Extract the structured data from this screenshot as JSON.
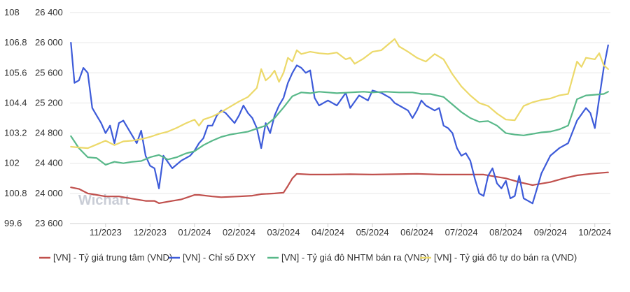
{
  "chart_data": {
    "type": "line",
    "title": "",
    "watermark": "Wichart",
    "x_labels": [
      "11/2023",
      "12/2023",
      "01/2024",
      "02/2024",
      "03/2024",
      "04/2024",
      "05/2024",
      "06/2024",
      "07/2024",
      "08/2024",
      "09/2024",
      "10/2024"
    ],
    "x_range_months": [
      -0.8,
      11.35
    ],
    "left_axis": {
      "ticks": [
        "108",
        "106.8",
        "105.6",
        "104.4",
        "103.2",
        "102",
        "100.8",
        "99.6"
      ],
      "range": [
        99.6,
        108
      ]
    },
    "right_axis": {
      "ticks": [
        "26 400",
        "26 000",
        "25 600",
        "25 200",
        "24 800",
        "24 400",
        "24 000",
        "23 600"
      ],
      "range": [
        23600,
        26400
      ]
    },
    "series": [
      {
        "name": "[VN] - Tỷ giá trung tâm (VND)",
        "color": "#c0504d",
        "axis": "right",
        "points": [
          [
            -0.78,
            24080
          ],
          [
            -0.6,
            24060
          ],
          [
            -0.4,
            24000
          ],
          [
            -0.2,
            23980
          ],
          [
            0,
            23960
          ],
          [
            0.3,
            23960
          ],
          [
            0.6,
            23930
          ],
          [
            0.9,
            23900
          ],
          [
            1.1,
            23900
          ],
          [
            1.2,
            23870
          ],
          [
            1.5,
            23900
          ],
          [
            1.7,
            23920
          ],
          [
            1.9,
            23960
          ],
          [
            2.0,
            23980
          ],
          [
            2.1,
            23980
          ],
          [
            2.4,
            23960
          ],
          [
            2.6,
            23950
          ],
          [
            3.0,
            23960
          ],
          [
            3.3,
            23970
          ],
          [
            3.5,
            23990
          ],
          [
            3.8,
            24000
          ],
          [
            4.0,
            24010
          ],
          [
            4.1,
            24100
          ],
          [
            4.2,
            24200
          ],
          [
            4.3,
            24260
          ],
          [
            4.6,
            24250
          ],
          [
            5.0,
            24250
          ],
          [
            5.5,
            24255
          ],
          [
            6.0,
            24250
          ],
          [
            6.5,
            24255
          ],
          [
            7.0,
            24260
          ],
          [
            7.5,
            24250
          ],
          [
            8.0,
            24250
          ],
          [
            8.5,
            24250
          ],
          [
            9.0,
            24200
          ],
          [
            9.3,
            24150
          ],
          [
            9.6,
            24110
          ],
          [
            9.8,
            24130
          ],
          [
            10.0,
            24150
          ],
          [
            10.3,
            24200
          ],
          [
            10.6,
            24240
          ],
          [
            10.9,
            24260
          ],
          [
            11.1,
            24270
          ],
          [
            11.3,
            24280
          ]
        ]
      },
      {
        "name": "[VN] - Chỉ số DXY",
        "color": "#3d5bd9",
        "axis": "left",
        "points": [
          [
            -0.78,
            106.8
          ],
          [
            -0.7,
            105.2
          ],
          [
            -0.6,
            105.3
          ],
          [
            -0.5,
            105.8
          ],
          [
            -0.4,
            105.6
          ],
          [
            -0.3,
            104.2
          ],
          [
            -0.2,
            103.9
          ],
          [
            -0.1,
            103.6
          ],
          [
            0,
            103.2
          ],
          [
            0.1,
            103.5
          ],
          [
            0.2,
            102.8
          ],
          [
            0.3,
            103.6
          ],
          [
            0.4,
            103.7
          ],
          [
            0.5,
            103.4
          ],
          [
            0.6,
            103.1
          ],
          [
            0.7,
            102.8
          ],
          [
            0.8,
            103.3
          ],
          [
            0.9,
            102.3
          ],
          [
            1.0,
            101.9
          ],
          [
            1.1,
            101.8
          ],
          [
            1.2,
            101.0
          ],
          [
            1.3,
            102.3
          ],
          [
            1.5,
            101.8
          ],
          [
            1.7,
            102.1
          ],
          [
            1.9,
            102.3
          ],
          [
            2.0,
            102.5
          ],
          [
            2.1,
            102.8
          ],
          [
            2.2,
            103.0
          ],
          [
            2.3,
            103.5
          ],
          [
            2.4,
            103.5
          ],
          [
            2.5,
            103.9
          ],
          [
            2.6,
            104.1
          ],
          [
            2.7,
            104.0
          ],
          [
            2.8,
            103.8
          ],
          [
            2.9,
            103.6
          ],
          [
            3.0,
            103.9
          ],
          [
            3.1,
            104.3
          ],
          [
            3.2,
            104.0
          ],
          [
            3.3,
            103.8
          ],
          [
            3.4,
            103.4
          ],
          [
            3.5,
            102.6
          ],
          [
            3.6,
            103.6
          ],
          [
            3.7,
            103.2
          ],
          [
            3.8,
            103.9
          ],
          [
            3.9,
            104.3
          ],
          [
            4.0,
            104.6
          ],
          [
            4.1,
            105.2
          ],
          [
            4.2,
            105.6
          ],
          [
            4.3,
            105.9
          ],
          [
            4.4,
            105.8
          ],
          [
            4.5,
            105.6
          ],
          [
            4.6,
            105.7
          ],
          [
            4.7,
            104.6
          ],
          [
            4.8,
            104.3
          ],
          [
            5.0,
            104.5
          ],
          [
            5.2,
            104.3
          ],
          [
            5.4,
            104.8
          ],
          [
            5.5,
            104.2
          ],
          [
            5.7,
            104.7
          ],
          [
            5.9,
            104.5
          ],
          [
            6.0,
            104.9
          ],
          [
            6.2,
            104.8
          ],
          [
            6.4,
            104.6
          ],
          [
            6.5,
            104.4
          ],
          [
            6.6,
            104.3
          ],
          [
            6.8,
            104.1
          ],
          [
            6.9,
            103.8
          ],
          [
            7.0,
            104.1
          ],
          [
            7.1,
            104.5
          ],
          [
            7.2,
            104.3
          ],
          [
            7.4,
            104.1
          ],
          [
            7.5,
            104.2
          ],
          [
            7.6,
            103.5
          ],
          [
            7.7,
            103.4
          ],
          [
            7.8,
            103.2
          ],
          [
            7.9,
            102.6
          ],
          [
            8.0,
            102.3
          ],
          [
            8.1,
            102.4
          ],
          [
            8.2,
            102.1
          ],
          [
            8.3,
            101.4
          ],
          [
            8.4,
            100.8
          ],
          [
            8.5,
            100.7
          ],
          [
            8.6,
            101.5
          ],
          [
            8.7,
            101.8
          ],
          [
            8.8,
            101.2
          ],
          [
            8.9,
            101.0
          ],
          [
            9.0,
            101.3
          ],
          [
            9.1,
            100.6
          ],
          [
            9.2,
            100.7
          ],
          [
            9.3,
            101.5
          ],
          [
            9.4,
            100.6
          ],
          [
            9.5,
            100.5
          ],
          [
            9.6,
            100.4
          ],
          [
            9.7,
            101.0
          ],
          [
            9.8,
            101.6
          ],
          [
            10.0,
            102.3
          ],
          [
            10.2,
            102.6
          ],
          [
            10.4,
            102.8
          ],
          [
            10.6,
            103.7
          ],
          [
            10.8,
            104.2
          ],
          [
            10.9,
            104.0
          ],
          [
            11.0,
            103.4
          ],
          [
            11.1,
            104.6
          ],
          [
            11.2,
            105.8
          ],
          [
            11.3,
            106.7
          ]
        ]
      },
      {
        "name": "[VN] - Tỷ giá đô NHTM bán ra (VND)",
        "color": "#58b889",
        "axis": "right",
        "points": [
          [
            -0.78,
            24760
          ],
          [
            -0.6,
            24600
          ],
          [
            -0.4,
            24480
          ],
          [
            -0.2,
            24470
          ],
          [
            0,
            24380
          ],
          [
            0.2,
            24420
          ],
          [
            0.4,
            24400
          ],
          [
            0.6,
            24420
          ],
          [
            0.8,
            24430
          ],
          [
            1.0,
            24480
          ],
          [
            1.2,
            24510
          ],
          [
            1.4,
            24450
          ],
          [
            1.6,
            24480
          ],
          [
            1.8,
            24530
          ],
          [
            2.0,
            24560
          ],
          [
            2.2,
            24640
          ],
          [
            2.4,
            24700
          ],
          [
            2.6,
            24750
          ],
          [
            2.8,
            24780
          ],
          [
            3.0,
            24800
          ],
          [
            3.2,
            24820
          ],
          [
            3.4,
            24860
          ],
          [
            3.6,
            24900
          ],
          [
            3.8,
            25000
          ],
          [
            4.0,
            25140
          ],
          [
            4.2,
            25290
          ],
          [
            4.4,
            25340
          ],
          [
            4.6,
            25330
          ],
          [
            4.8,
            25350
          ],
          [
            5.0,
            25340
          ],
          [
            5.2,
            25330
          ],
          [
            5.5,
            25340
          ],
          [
            5.8,
            25350
          ],
          [
            6.0,
            25340
          ],
          [
            6.3,
            25350
          ],
          [
            6.6,
            25340
          ],
          [
            6.9,
            25340
          ],
          [
            7.1,
            25320
          ],
          [
            7.3,
            25320
          ],
          [
            7.6,
            25280
          ],
          [
            7.8,
            25180
          ],
          [
            8.0,
            25080
          ],
          [
            8.2,
            25000
          ],
          [
            8.4,
            24950
          ],
          [
            8.6,
            24960
          ],
          [
            8.8,
            24900
          ],
          [
            9.0,
            24800
          ],
          [
            9.2,
            24780
          ],
          [
            9.4,
            24770
          ],
          [
            9.6,
            24790
          ],
          [
            9.8,
            24810
          ],
          [
            10.0,
            24820
          ],
          [
            10.2,
            24850
          ],
          [
            10.4,
            24900
          ],
          [
            10.6,
            25250
          ],
          [
            10.8,
            25300
          ],
          [
            11.0,
            25310
          ],
          [
            11.2,
            25320
          ],
          [
            11.3,
            25350
          ]
        ]
      },
      {
        "name": "[VN] - Tỷ giá đô tự do bán ra (VND)",
        "color": "#ecd96a",
        "axis": "right",
        "points": [
          [
            -0.78,
            24620
          ],
          [
            -0.6,
            24610
          ],
          [
            -0.4,
            24600
          ],
          [
            -0.2,
            24650
          ],
          [
            0,
            24700
          ],
          [
            0.2,
            24640
          ],
          [
            0.4,
            24690
          ],
          [
            0.6,
            24700
          ],
          [
            0.8,
            24720
          ],
          [
            1.0,
            24750
          ],
          [
            1.2,
            24790
          ],
          [
            1.4,
            24820
          ],
          [
            1.6,
            24870
          ],
          [
            1.8,
            24930
          ],
          [
            2.0,
            24980
          ],
          [
            2.1,
            24900
          ],
          [
            2.2,
            24980
          ],
          [
            2.4,
            25020
          ],
          [
            2.6,
            25080
          ],
          [
            2.8,
            25150
          ],
          [
            3.0,
            25220
          ],
          [
            3.2,
            25280
          ],
          [
            3.4,
            25400
          ],
          [
            3.5,
            25650
          ],
          [
            3.6,
            25500
          ],
          [
            3.7,
            25550
          ],
          [
            3.8,
            25630
          ],
          [
            3.9,
            25480
          ],
          [
            4.0,
            25600
          ],
          [
            4.1,
            25800
          ],
          [
            4.2,
            25750
          ],
          [
            4.3,
            25900
          ],
          [
            4.4,
            25850
          ],
          [
            4.6,
            25880
          ],
          [
            4.8,
            25860
          ],
          [
            5.0,
            25850
          ],
          [
            5.2,
            25870
          ],
          [
            5.4,
            25780
          ],
          [
            5.5,
            25800
          ],
          [
            5.6,
            25720
          ],
          [
            5.8,
            25790
          ],
          [
            6.0,
            25880
          ],
          [
            6.2,
            25900
          ],
          [
            6.4,
            26000
          ],
          [
            6.5,
            26050
          ],
          [
            6.6,
            25950
          ],
          [
            6.8,
            25880
          ],
          [
            7.0,
            25800
          ],
          [
            7.2,
            25750
          ],
          [
            7.4,
            25850
          ],
          [
            7.6,
            25780
          ],
          [
            7.8,
            25580
          ],
          [
            8.0,
            25420
          ],
          [
            8.2,
            25300
          ],
          [
            8.4,
            25200
          ],
          [
            8.6,
            25160
          ],
          [
            8.8,
            25060
          ],
          [
            9.0,
            24980
          ],
          [
            9.2,
            24970
          ],
          [
            9.4,
            25160
          ],
          [
            9.6,
            25210
          ],
          [
            9.8,
            25240
          ],
          [
            10.0,
            25260
          ],
          [
            10.2,
            25300
          ],
          [
            10.4,
            25320
          ],
          [
            10.6,
            25750
          ],
          [
            10.7,
            25680
          ],
          [
            10.8,
            25800
          ],
          [
            11.0,
            25780
          ],
          [
            11.1,
            25860
          ],
          [
            11.2,
            25700
          ],
          [
            11.3,
            25650
          ]
        ]
      }
    ]
  }
}
